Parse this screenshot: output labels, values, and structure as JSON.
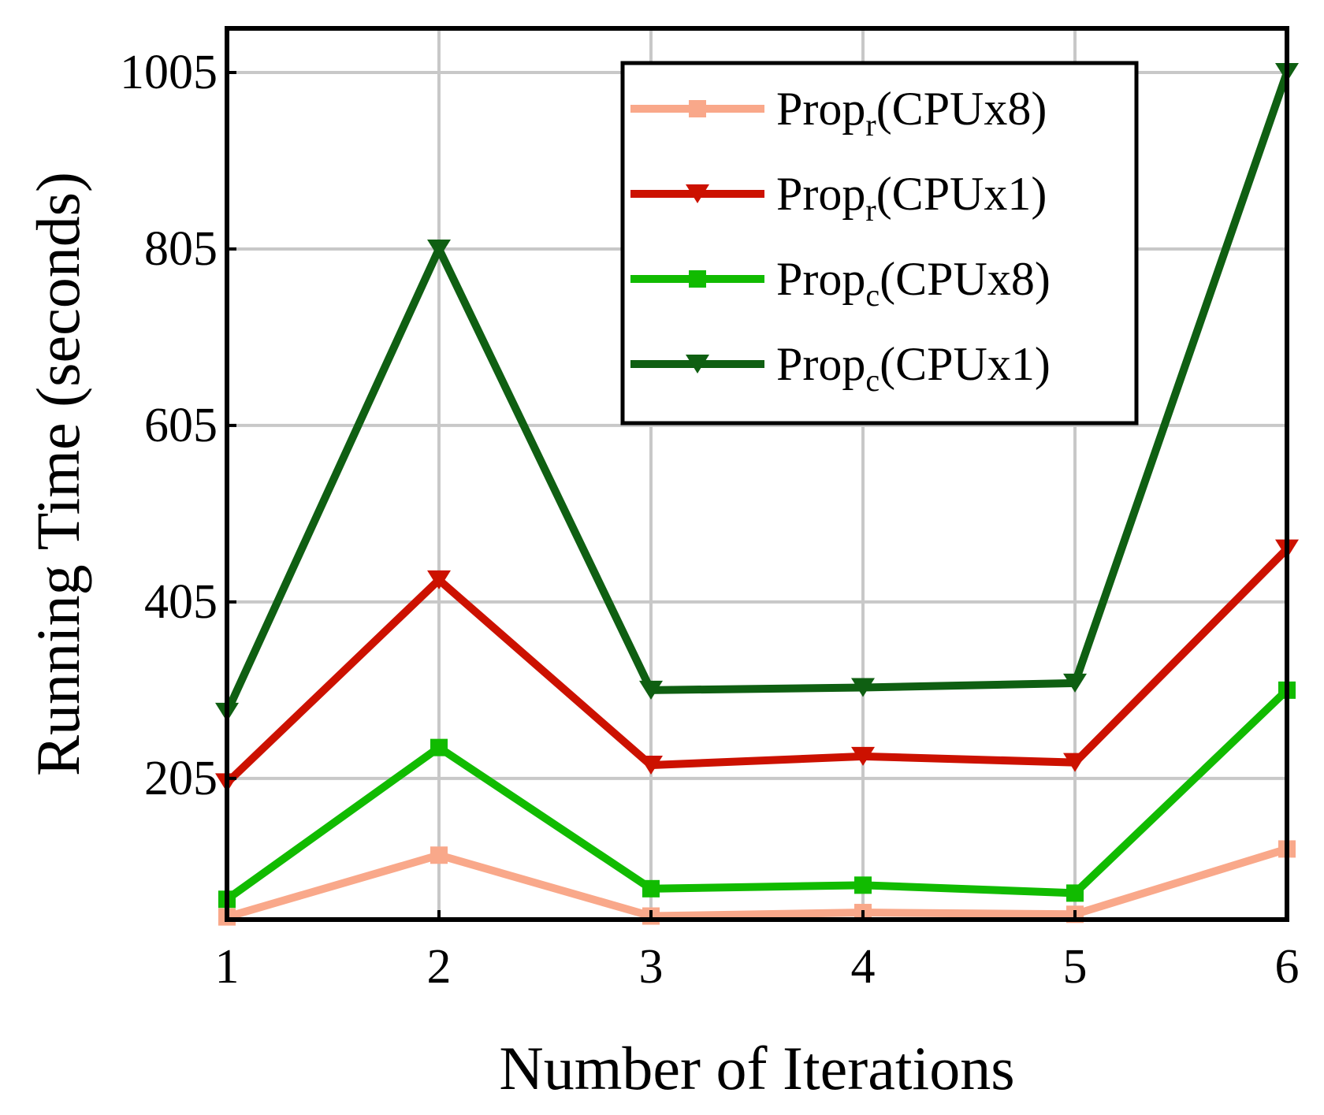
{
  "chart_data": {
    "type": "line",
    "title": "",
    "xlabel": "Number of Iterations",
    "ylabel": "Running Time (seconds)",
    "x": [
      1,
      2,
      3,
      4,
      5,
      6
    ],
    "x_tick_labels": [
      "1",
      "2",
      "3",
      "4",
      "5",
      "6"
    ],
    "y_tick_values": [
      205,
      405,
      605,
      805,
      1005
    ],
    "y_tick_labels": [
      "205",
      "405",
      "605",
      "805",
      "1005"
    ],
    "xlim": [
      1,
      6
    ],
    "ylim": [
      45,
      1055
    ],
    "grid": true,
    "legend_position": "top-right",
    "series": [
      {
        "name": "Prop_r(CPUx8)",
        "legend_base": "Prop",
        "legend_sub": "r",
        "legend_rest": "(CPUx8)",
        "color": "#F9A88A",
        "marker": "square",
        "values": [
          48,
          118,
          49,
          53,
          51,
          125
        ]
      },
      {
        "name": "Prop_r(CPUx1)",
        "legend_base": "Prop",
        "legend_sub": "r",
        "legend_rest": "(CPUx1)",
        "color": "#CC1100",
        "marker": "triangle-down",
        "values": [
          200,
          430,
          220,
          230,
          223,
          465
        ]
      },
      {
        "name": "Prop_c(CPUx8)",
        "legend_base": "Prop",
        "legend_sub": "c",
        "legend_rest": "(CPUx8)",
        "color": "#11BB00",
        "marker": "square",
        "values": [
          68,
          240,
          80,
          84,
          75,
          305
        ]
      },
      {
        "name": "Prop_c(CPUx1)",
        "legend_base": "Prop",
        "legend_sub": "c",
        "legend_rest": "(CPUx1)",
        "color": "#0F5F12",
        "marker": "triangle-down",
        "values": [
          280,
          805,
          305,
          308,
          313,
          1005
        ]
      }
    ]
  }
}
